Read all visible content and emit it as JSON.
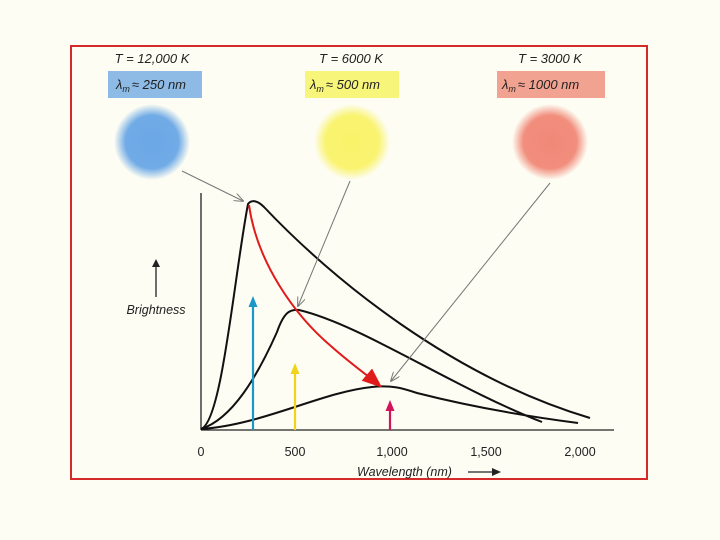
{
  "stars": [
    {
      "temperature": "T = 12,000 K",
      "lambda_symbol": "λ",
      "lambda_sub": "m",
      "lambda_value": "≈ 250 nm",
      "box_color": "#8dbbe6",
      "star_color": "#6aa7e6",
      "peak_nm": 250
    },
    {
      "temperature": "T = 6000 K",
      "lambda_symbol": "λ",
      "lambda_sub": "m",
      "lambda_value": "≈ 500 nm",
      "box_color": "#f7f57a",
      "star_color": "#f9f36a",
      "peak_nm": 500
    },
    {
      "temperature": "T = 3000 K",
      "lambda_symbol": "λ",
      "lambda_sub": "m",
      "lambda_value": "≈ 1000 nm",
      "box_color": "#f2a291",
      "star_color": "#f18877",
      "peak_nm": 1000
    }
  ],
  "axes": {
    "x_label": "Wavelength (nm)",
    "y_label": "Brightness",
    "x_ticks": [
      "0",
      "500",
      "1,000",
      "1,500",
      "2,000"
    ]
  },
  "peak_arrow_colors": [
    "#1b96c8",
    "#f2d21a",
    "#d4145a"
  ],
  "trend_arrow_color": "#e01b1b"
}
